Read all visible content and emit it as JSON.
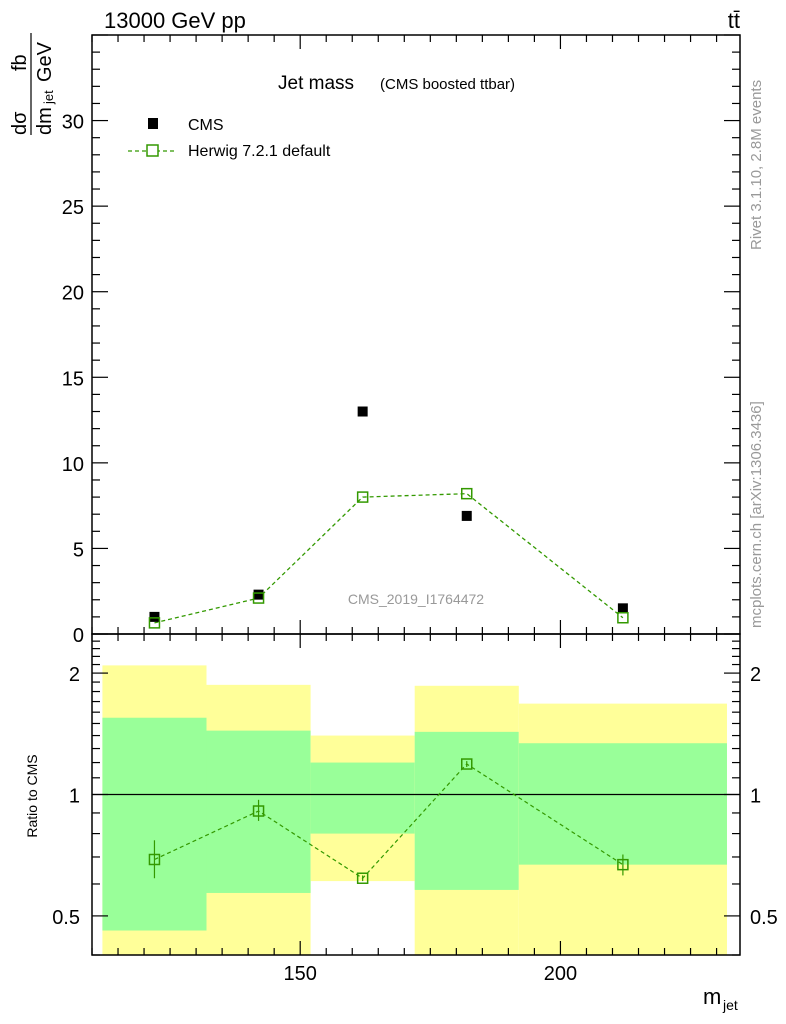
{
  "header": {
    "energy_label": "13000 GeV pp",
    "process_label": "tt̄"
  },
  "side_labels": {
    "rivet": "Rivet 3.1.10,  2.8M events",
    "source": "mcplots.cern.ch [arXiv:1306.3436]"
  },
  "colors": {
    "data": "#000000",
    "mc": "#339900",
    "band_inner": "#99ff99",
    "band_outer": "#ffff99"
  },
  "chart_data": [
    {
      "type": "scatter",
      "title": "Jet mass",
      "subtitle": "(CMS boosted ttbar)",
      "watermark": "CMS_2019_I1764472",
      "ylabel_num": "dσ",
      "ylabel_den": "dm",
      "ylabel_den_sub": "jet",
      "yunit_num": "fb",
      "yunit_den": "GeV",
      "xlim": [
        110,
        234.5
      ],
      "ylim": [
        0,
        35
      ],
      "yticks": [
        0,
        5,
        10,
        15,
        20,
        25,
        30
      ],
      "ytick_labels": [
        "0",
        "5",
        "10",
        "15",
        "20",
        "25",
        "30"
      ],
      "legend_position": "top-left",
      "x": [
        122,
        142,
        162,
        182,
        212
      ],
      "series": [
        {
          "name": "CMS",
          "values": [
            1.0,
            2.3,
            13.0,
            6.9,
            1.5
          ],
          "marker": "filled-square"
        },
        {
          "name": "Herwig 7.2.1 default",
          "values": [
            0.65,
            2.1,
            8.0,
            8.2,
            0.95
          ],
          "marker": "open-square",
          "line": "dashed"
        }
      ]
    },
    {
      "type": "scatter",
      "ylabel": "Ratio to CMS",
      "xlabel": "m",
      "xlabel_sub": "jet",
      "yscale": "log",
      "ylim": [
        0.4,
        2.5
      ],
      "yticks": [
        0.5,
        1,
        2
      ],
      "ytick_labels": [
        "0.5",
        "1",
        "2"
      ],
      "xticks": [
        150,
        200
      ],
      "xtick_labels": [
        "150",
        "200"
      ],
      "bin_edges": [
        112,
        132,
        152,
        172,
        192,
        232
      ],
      "band_inner": {
        "low": [
          0.46,
          0.57,
          0.8,
          0.58,
          0.67
        ],
        "high": [
          1.55,
          1.44,
          1.2,
          1.43,
          1.34
        ]
      },
      "band_outer": {
        "low": [
          0.38,
          0.38,
          0.61,
          0.38,
          0.38
        ],
        "high": [
          2.09,
          1.87,
          1.4,
          1.86,
          1.68
        ]
      },
      "x": [
        122,
        142,
        162,
        182,
        212
      ],
      "series": [
        {
          "name": "Herwig 7.2.1 default",
          "values": [
            0.69,
            0.91,
            0.62,
            1.19,
            0.67
          ],
          "err_low": [
            0.62,
            0.86,
            0.61,
            1.17,
            0.63
          ],
          "err_high": [
            0.77,
            0.97,
            0.63,
            1.21,
            0.71
          ]
        }
      ]
    }
  ]
}
